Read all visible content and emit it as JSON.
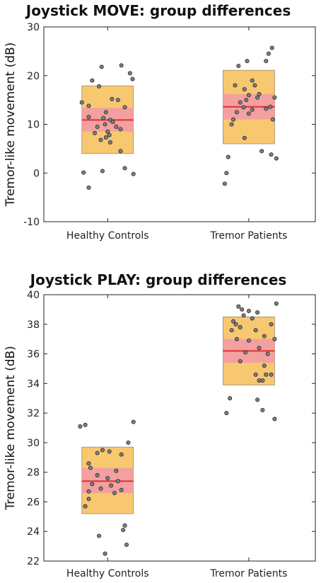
{
  "chart_data": [
    {
      "type": "scatter",
      "title": "Joystick MOVE: group differences",
      "ylabel": "Tremor-like movement (dB)",
      "ylim": [
        -10,
        30
      ],
      "yticks": [
        -10,
        0,
        10,
        20,
        30
      ],
      "categories": [
        "Healthy Controls",
        "Tremor Patients"
      ],
      "grid": false,
      "colors": {
        "sd_box": "#F8C870",
        "sem_box": "#F4A0A0",
        "mean_line": "#E03030",
        "point": "#808080"
      },
      "groups": [
        {
          "category": "Healthy Controls",
          "mean": 10.9,
          "sem": [
            8.5,
            13.4
          ],
          "sd": [
            4,
            17.9
          ],
          "points": [
            [
              -0.28,
              0.1
            ],
            [
              -0.3,
              14.5
            ],
            [
              -0.22,
              13.8
            ],
            [
              -0.18,
              19
            ],
            [
              -0.22,
              11.5
            ],
            [
              -0.1,
              17.8
            ],
            [
              -0.07,
              21.8
            ],
            [
              0.16,
              22.1
            ],
            [
              0.26,
              20.5
            ],
            [
              0.29,
              19.3
            ],
            [
              0.05,
              15.2
            ],
            [
              0.12,
              15
            ],
            [
              0.2,
              13.5
            ],
            [
              -0.02,
              12.5
            ],
            [
              -0.05,
              11.3
            ],
            [
              0.03,
              10.9
            ],
            [
              0.06,
              10.5
            ],
            [
              -0.03,
              10
            ],
            [
              0.1,
              9.5
            ],
            [
              -0.12,
              9.5
            ],
            [
              0.15,
              9
            ],
            [
              0.0,
              8.5
            ],
            [
              -0.15,
              8.2
            ],
            [
              0.02,
              7.8
            ],
            [
              -0.02,
              7.3
            ],
            [
              -0.08,
              6.8
            ],
            [
              0.03,
              6.3
            ],
            [
              0.15,
              4.5
            ],
            [
              0.2,
              1
            ],
            [
              0.3,
              -0.2
            ],
            [
              -0.06,
              0.4
            ],
            [
              -0.22,
              -3
            ]
          ]
        },
        {
          "category": "Tremor Patients",
          "mean": 13.6,
          "sem": [
            11,
            16.2
          ],
          "sd": [
            6,
            21.1
          ],
          "points": [
            [
              -0.28,
              -2.2
            ],
            [
              -0.26,
              0
            ],
            [
              -0.24,
              3.3
            ],
            [
              -0.2,
              10
            ],
            [
              -0.18,
              11
            ],
            [
              -0.16,
              18
            ],
            [
              -0.12,
              22
            ],
            [
              -0.02,
              23
            ],
            [
              0.2,
              23
            ],
            [
              0.23,
              24.5
            ],
            [
              0.27,
              25.7
            ],
            [
              0.3,
              15.5
            ],
            [
              0.2,
              13.2
            ],
            [
              0.28,
              11
            ],
            [
              0.25,
              13.6
            ],
            [
              0.12,
              16.2
            ],
            [
              0.1,
              15.5
            ],
            [
              0.04,
              19
            ],
            [
              0.07,
              18
            ],
            [
              -0.05,
              17.2
            ],
            [
              0.0,
              16
            ],
            [
              -0.03,
              15
            ],
            [
              -0.1,
              14.5
            ],
            [
              -0.06,
              13.5
            ],
            [
              0.04,
              13
            ],
            [
              -0.14,
              12.5
            ],
            [
              0.0,
              12.2
            ],
            [
              -0.05,
              7.2
            ],
            [
              0.15,
              4.5
            ],
            [
              0.26,
              3.8
            ],
            [
              0.32,
              3
            ]
          ]
        }
      ]
    },
    {
      "type": "scatter",
      "title": "Joystick PLAY: group differences",
      "ylabel": "Tremor-like movement (dB)",
      "ylim": [
        22,
        40
      ],
      "yticks": [
        22,
        24,
        26,
        28,
        30,
        32,
        34,
        36,
        38,
        40
      ],
      "categories": [
        "Healthy Controls",
        "Tremor Patients"
      ],
      "grid": false,
      "colors": {
        "sd_box": "#F8C870",
        "sem_box": "#F4A0A0",
        "mean_line": "#E03030",
        "point": "#808080"
      },
      "groups": [
        {
          "category": "Healthy Controls",
          "mean": 27.4,
          "sem": [
            26.6,
            28.3
          ],
          "sd": [
            25.2,
            29.7
          ],
          "points": [
            [
              -0.32,
              31.1
            ],
            [
              -0.26,
              31.2
            ],
            [
              0.3,
              31.4
            ],
            [
              0.24,
              30
            ],
            [
              -0.06,
              29.5
            ],
            [
              0.02,
              29.4
            ],
            [
              -0.12,
              29.3
            ],
            [
              0.16,
              29.2
            ],
            [
              -0.22,
              28.6
            ],
            [
              -0.2,
              28.3
            ],
            [
              0.1,
              28.1
            ],
            [
              -0.12,
              27.8
            ],
            [
              0.0,
              27.6
            ],
            [
              0.12,
              27.4
            ],
            [
              -0.18,
              27.2
            ],
            [
              0.04,
              27.1
            ],
            [
              -0.08,
              26.9
            ],
            [
              0.08,
              26.6
            ],
            [
              -0.22,
              26.7
            ],
            [
              0.16,
              26.8
            ],
            [
              -0.22,
              26.2
            ],
            [
              -0.26,
              25.7
            ],
            [
              0.2,
              24.4
            ],
            [
              0.18,
              24.1
            ],
            [
              -0.1,
              23.7
            ],
            [
              0.22,
              23.1
            ],
            [
              -0.03,
              22.5
            ]
          ]
        },
        {
          "category": "Tremor Patients",
          "mean": 36.2,
          "sem": [
            35.4,
            37
          ],
          "sd": [
            33.9,
            38.5
          ],
          "points": [
            [
              -0.12,
              39.2
            ],
            [
              -0.08,
              39
            ],
            [
              0.0,
              38.9
            ],
            [
              0.1,
              38.8
            ],
            [
              -0.18,
              38.2
            ],
            [
              0.32,
              39.4
            ],
            [
              0.26,
              38
            ],
            [
              -0.06,
              38.6
            ],
            [
              0.04,
              38.4
            ],
            [
              -0.15,
              38
            ],
            [
              -0.1,
              37.8
            ],
            [
              0.08,
              37.6
            ],
            [
              -0.2,
              37.6
            ],
            [
              0.18,
              37.2
            ],
            [
              0.3,
              37
            ],
            [
              -0.14,
              37
            ],
            [
              0.0,
              36.9
            ],
            [
              0.12,
              36.4
            ],
            [
              -0.04,
              36.1
            ],
            [
              0.22,
              36
            ],
            [
              -0.1,
              35.5
            ],
            [
              0.18,
              35.2
            ],
            [
              0.08,
              34.6
            ],
            [
              0.2,
              34.6
            ],
            [
              0.26,
              34.6
            ],
            [
              0.12,
              34.2
            ],
            [
              0.16,
              34.2
            ],
            [
              -0.22,
              33
            ],
            [
              0.1,
              32.9
            ],
            [
              -0.26,
              32
            ],
            [
              0.16,
              32.2
            ],
            [
              0.3,
              31.6
            ]
          ]
        }
      ]
    }
  ]
}
